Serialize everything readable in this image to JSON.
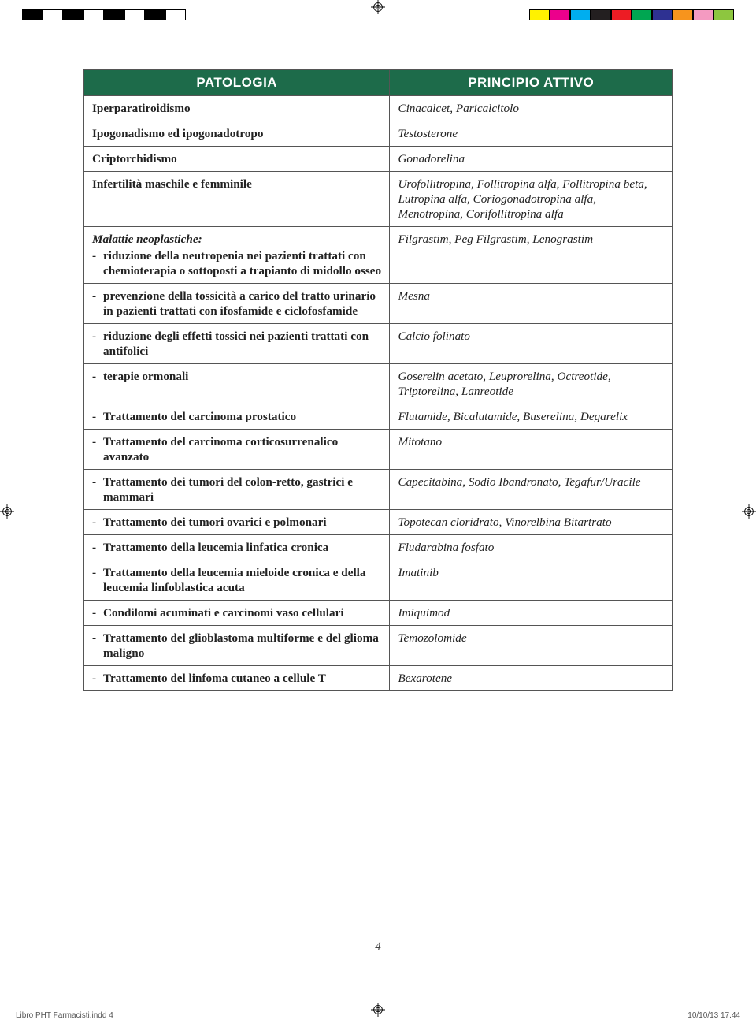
{
  "printer_marks": {
    "bw_swatches": [
      "#000000",
      "#ffffff",
      "#000000",
      "#ffffff",
      "#000000",
      "#ffffff",
      "#000000",
      "#ffffff"
    ],
    "color_swatches": [
      "#fff200",
      "#ec008c",
      "#00aeef",
      "#231f20",
      "#ed1c24",
      "#00a651",
      "#2e3192",
      "#f7941d",
      "#f49ac1",
      "#8dc63f"
    ]
  },
  "table": {
    "header": {
      "col1": "PATOLOGIA",
      "col2": "PRINCIPIO ATTIVO"
    },
    "header_bg": "#1d6b4a",
    "simple_rows": [
      {
        "path": "Iperparatiroidismo",
        "princ": "Cinacalcet, Paricalcitolo"
      },
      {
        "path": "Ipogonadismo ed ipogonadotropo",
        "princ": "Testosterone"
      },
      {
        "path": "Criptorchidismo",
        "princ": "Gonadorelina"
      },
      {
        "path": "Infertilità maschile e femminile",
        "princ": "Urofollitropina, Follitropina alfa, Follitropina beta, Lutropina alfa, Coriogonadotropina alfa, Menotropina, Corifollitropina alfa"
      }
    ],
    "group": {
      "intro": "Malattie neoplastiche:",
      "items": [
        {
          "path": "riduzione della neutropenia nei pazienti trattati con chemioterapia o sottoposti a trapianto di midollo osseo",
          "princ": "Filgrastim, Peg Filgrastim, Lenograstim"
        },
        {
          "path": "prevenzione della tossicità a carico del tratto urinario in pazienti trattati con ifosfamide e ciclofosfamide",
          "princ": "Mesna"
        },
        {
          "path": "riduzione degli effetti tossici nei pazienti trattati con antifolici",
          "princ": "Calcio folinato"
        },
        {
          "path": "terapie ormonali",
          "princ": "Goserelin acetato, Leuprorelina, Octreotide, Triptorelina, Lanreotide"
        },
        {
          "path": "Trattamento del carcinoma prostatico",
          "princ": "Flutamide, Bicalutamide, Buserelina, Degarelix"
        },
        {
          "path": "Trattamento del carcinoma corticosurrenalico avanzato",
          "princ": "Mitotano"
        },
        {
          "path": "Trattamento dei tumori del colon-retto, gastrici e mammari",
          "princ": "Capecitabina, Sodio Ibandronato, Tegafur/Uracile"
        },
        {
          "path": "Trattamento dei tumori ovarici e polmonari",
          "princ": "Topotecan cloridrato, Vinorelbina Bitartrato"
        },
        {
          "path": "Trattamento della leucemia linfatica cronica",
          "princ": "Fludarabina fosfato"
        },
        {
          "path": "Trattamento della leucemia mieloide cronica e della leucemia linfoblastica acuta",
          "princ": "Imatinib"
        },
        {
          "path": "Condilomi acuminati e carcinomi vaso cellulari",
          "princ": "Imiquimod"
        },
        {
          "path": "Trattamento del glioblastoma multiforme e del glioma maligno",
          "princ": "Temozolomide"
        },
        {
          "path": "Trattamento del linfoma cutaneo a cellule T",
          "princ": "Bexarotene"
        }
      ]
    }
  },
  "page_number": "4",
  "footer": {
    "left": "Libro PHT Farmacisti.indd   4",
    "right": "10/10/13   17.44"
  }
}
